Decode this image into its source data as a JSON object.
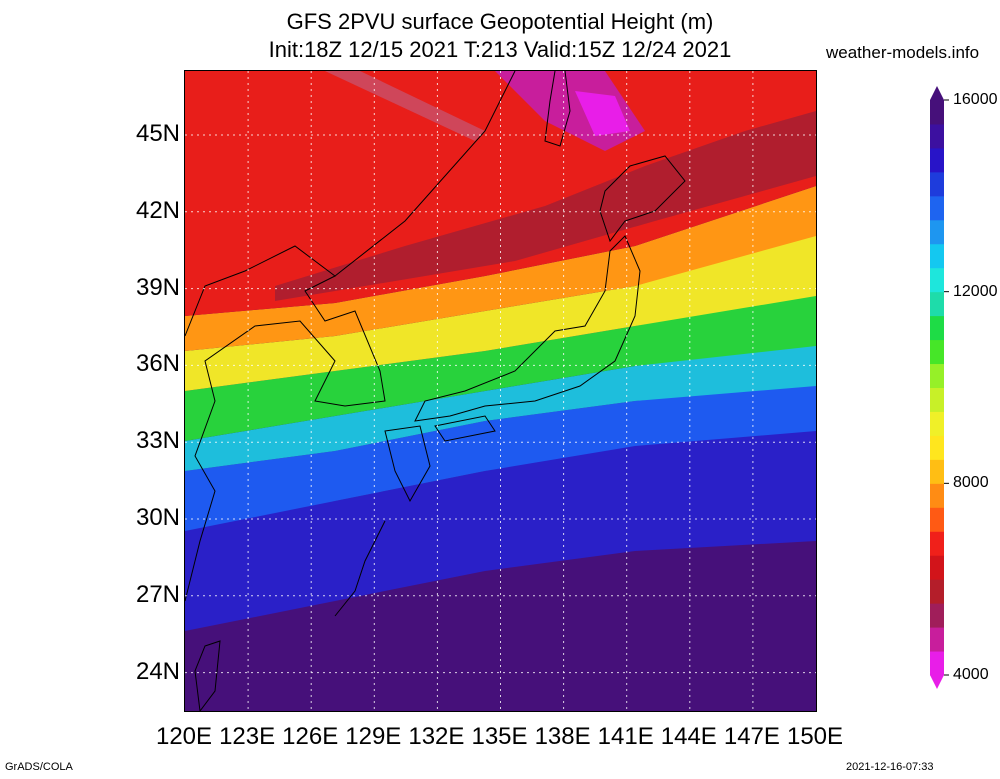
{
  "title_line1": "GFS 2PVU surface Geopotential Height (m)",
  "title_line2": "Init:18Z 12/15 2021 T:213 Valid:15Z 12/24 2021",
  "site": "weather-models.info",
  "footer_left": "GrADS/COLA",
  "footer_right": "2021-12-16-07:33",
  "map_bounds": {
    "lon": [
      120,
      150
    ],
    "lat": [
      22.5,
      47.5
    ]
  },
  "lat_labels": [
    {
      "value": 45,
      "text": "45N"
    },
    {
      "value": 42,
      "text": "42N"
    },
    {
      "value": 39,
      "text": "39N"
    },
    {
      "value": 36,
      "text": "36N"
    },
    {
      "value": 33,
      "text": "33N"
    },
    {
      "value": 30,
      "text": "30N"
    },
    {
      "value": 27,
      "text": "27N"
    },
    {
      "value": 24,
      "text": "24N"
    }
  ],
  "lon_labels": [
    {
      "value": 120,
      "text": "120E"
    },
    {
      "value": 123,
      "text": "123E"
    },
    {
      "value": 126,
      "text": "126E"
    },
    {
      "value": 129,
      "text": "129E"
    },
    {
      "value": 132,
      "text": "132E"
    },
    {
      "value": 135,
      "text": "135E"
    },
    {
      "value": 138,
      "text": "138E"
    },
    {
      "value": 141,
      "text": "141E"
    },
    {
      "value": 144,
      "text": "144E"
    },
    {
      "value": 147,
      "text": "147E"
    },
    {
      "value": 150,
      "text": "150E"
    }
  ],
  "colorbar": {
    "min": 4000,
    "max": 16000,
    "colors": [
      "#e81ee8",
      "#c81e9c",
      "#a01e5a",
      "#b41e2a",
      "#d2141a",
      "#f0201a",
      "#ff5a14",
      "#ff8c14",
      "#ffbe14",
      "#ffe61e",
      "#f0f028",
      "#c8f028",
      "#96f028",
      "#46e628",
      "#1edc46",
      "#1edcaa",
      "#1ee6dc",
      "#14c8f0",
      "#1e96f0",
      "#1e64f0",
      "#1e3cdc",
      "#2814c8",
      "#3c10a0",
      "#46107a"
    ],
    "labels": [
      {
        "value": 4000,
        "text": "4000"
      },
      {
        "value": 8000,
        "text": "8000"
      },
      {
        "value": 12000,
        "text": "12000"
      },
      {
        "value": 16000,
        "text": "16000"
      }
    ]
  }
}
